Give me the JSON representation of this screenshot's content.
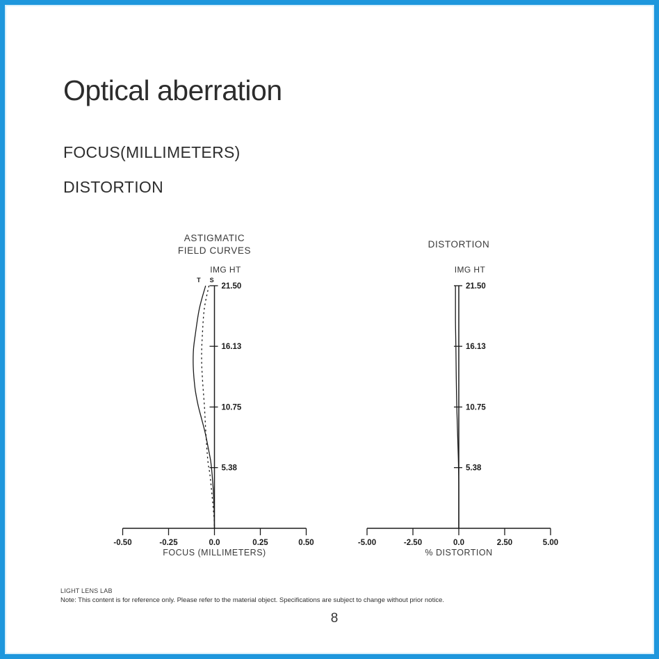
{
  "page": {
    "title": "Optical aberration",
    "subtitle_line1": "FOCUS(MILLIMETERS)",
    "subtitle_line2": "DISTORTION",
    "page_number": "8",
    "accent_border_color": "#1e97dd",
    "ink_color": "#1b1b1b"
  },
  "footer": {
    "brand": "LIGHT LENS LAB",
    "note": "Note: This content is for reference only. Please refer to the material object. Specifications are subject to change without prior notice."
  },
  "chart_data": [
    {
      "type": "line",
      "title_lines": [
        "ASTIGMATIC",
        "FIELD CURVES"
      ],
      "y_axis_label": "IMG HT",
      "xlabel": "FOCUS (MILLIMETERS)",
      "xlim": [
        -0.5,
        0.5
      ],
      "ylim": [
        0,
        21.5
      ],
      "grid": false,
      "x_ticks": [
        {
          "value": -0.5,
          "label": "-0.50"
        },
        {
          "value": -0.25,
          "label": "-0.25"
        },
        {
          "value": 0,
          "label": "0.0"
        },
        {
          "value": 0.25,
          "label": "0.25"
        },
        {
          "value": 0.5,
          "label": "0.50"
        }
      ],
      "y_ticks": [
        {
          "value": 21.5,
          "label": "21.50"
        },
        {
          "value": 16.13,
          "label": "16.13"
        },
        {
          "value": 10.75,
          "label": "10.75"
        },
        {
          "value": 5.38,
          "label": "5.38"
        }
      ],
      "series": [
        {
          "name": "T",
          "line_style": "solid",
          "points": [
            [
              -0.048,
              21.5
            ],
            [
              -0.082,
              19.5
            ],
            [
              -0.105,
              17.1
            ],
            [
              -0.114,
              15.9
            ],
            [
              -0.116,
              14.6
            ],
            [
              -0.112,
              13.4
            ],
            [
              -0.104,
              12.2
            ],
            [
              -0.089,
              10.9
            ],
            [
              -0.07,
              9.7
            ],
            [
              -0.051,
              8.5
            ],
            [
              -0.036,
              7.3
            ],
            [
              -0.021,
              6.0
            ],
            [
              -0.013,
              4.8
            ],
            [
              -0.006,
              3.3
            ],
            [
              -0.002,
              1.7
            ],
            [
              0,
              0
            ]
          ]
        },
        {
          "name": "S",
          "line_style": "dashed",
          "points": [
            [
              -0.03,
              21.5
            ],
            [
              -0.055,
              19.5
            ],
            [
              -0.066,
              17.1
            ],
            [
              -0.07,
              15.2
            ],
            [
              -0.066,
              13.4
            ],
            [
              -0.055,
              10.9
            ],
            [
              -0.047,
              8.5
            ],
            [
              -0.036,
              6.0
            ],
            [
              -0.025,
              4.8
            ],
            [
              -0.013,
              2.9
            ],
            [
              -0.003,
              1.1
            ],
            [
              0,
              0
            ]
          ]
        }
      ]
    },
    {
      "type": "line",
      "title_lines": [
        "DISTORTION"
      ],
      "y_axis_label": "IMG HT",
      "xlabel": "% DISTORTION",
      "xlim": [
        -5,
        5
      ],
      "ylim": [
        0,
        21.5
      ],
      "grid": false,
      "x_ticks": [
        {
          "value": -5,
          "label": "-5.00"
        },
        {
          "value": -2.5,
          "label": "-2.50"
        },
        {
          "value": 0,
          "label": "0.0"
        },
        {
          "value": 2.5,
          "label": "2.50"
        },
        {
          "value": 5,
          "label": "5.00"
        }
      ],
      "y_ticks": [
        {
          "value": 21.5,
          "label": "21.50"
        },
        {
          "value": 16.13,
          "label": "16.13"
        },
        {
          "value": 10.75,
          "label": "10.75"
        },
        {
          "value": 5.38,
          "label": "5.38"
        }
      ],
      "series": [
        {
          "name": "",
          "line_style": "solid",
          "points": [
            [
              -0.18,
              21.5
            ],
            [
              -0.18,
              18.5
            ],
            [
              -0.16,
              16.1
            ],
            [
              -0.14,
              13.5
            ],
            [
              -0.11,
              10.75
            ],
            [
              -0.07,
              8.5
            ],
            [
              -0.03,
              6.5
            ],
            [
              -0.01,
              5.0
            ],
            [
              0,
              3.5
            ],
            [
              0,
              0
            ]
          ]
        }
      ]
    }
  ]
}
